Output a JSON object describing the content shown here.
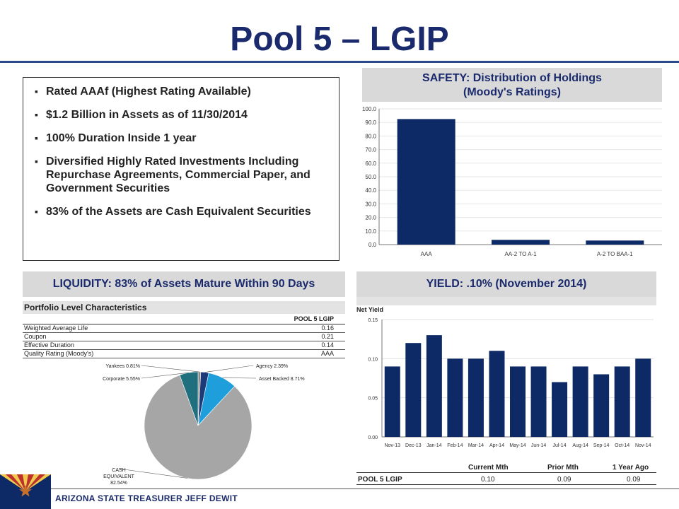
{
  "slide": {
    "title": "Pool 5 – LGIP",
    "footer": "ARIZONA STATE TREASURER JEFF DEWIT"
  },
  "bullets": [
    "Rated AAAf (Highest Rating Available)",
    "$1.2 Billion in Assets as of 11/30/2014",
    "100% Duration Inside 1 year",
    "Diversified Highly Rated Investments Including Repurchase Agreements, Commercial Paper, and Government Securities",
    "83% of the Assets are Cash Equivalent Securities"
  ],
  "sections": {
    "safety_line1": "SAFETY: Distribution of Holdings",
    "safety_line2": "(Moody's Ratings)",
    "liquidity": "LIQUIDITY: 83% of Assets Mature Within 90 Days",
    "yield": "YIELD: .10% (November 2014)"
  },
  "portfolio": {
    "title": "Portfolio Level Characteristics",
    "column": "POOL 5 LGIP",
    "rows": [
      {
        "label": "Weighted Average Life",
        "value": "0.16"
      },
      {
        "label": "Coupon",
        "value": "0.21"
      },
      {
        "label": "Effective Duration",
        "value": "0.14"
      },
      {
        "label": "Quality Rating (Moody's)",
        "value": "AAA"
      }
    ]
  },
  "yield_table": {
    "headers": [
      "Current Mth",
      "Prior Mth",
      "1 Year Ago"
    ],
    "row_label": "POOL 5 LGIP",
    "values": [
      "0.10",
      "0.09",
      "0.09"
    ]
  },
  "colors": {
    "navy": "#0d2a66",
    "title": "#1a2a6c",
    "pie_gray": "#a6a6a6",
    "pie_teal": "#1f6f7f",
    "pie_cyan": "#1e9fdc",
    "pie_navy": "#1c3a78"
  },
  "chart_data": [
    {
      "type": "bar",
      "categories": [
        "AAA",
        "AA-2 TO A-1",
        "A-2 TO BAA-1"
      ],
      "values": [
        92.5,
        3.5,
        3.0
      ],
      "ylim": [
        0,
        100
      ],
      "yticks": [
        "100.0",
        "90.0",
        "80.0",
        "70.0",
        "60.0",
        "50.0",
        "40.0",
        "30.0",
        "20.0",
        "10.0",
        "0.0"
      ]
    },
    {
      "type": "pie",
      "labels": [
        "Yankees 0.81%",
        "Agency 2.39%",
        "Asset Backed 8.71%",
        "CASH EQUIVALENT 82.54%",
        "Corporate 5.55%"
      ],
      "cash_label_line1": "CASH",
      "cash_label_line2": "EQUIVALENT",
      "cash_label_line3": "82.54%",
      "values": [
        0.81,
        2.39,
        8.71,
        82.54,
        5.55
      ]
    },
    {
      "type": "bar",
      "title": "Net Yield",
      "categories": [
        "Nov-13",
        "Dec-13",
        "Jan-14",
        "Feb-14",
        "Mar-14",
        "Apr-14",
        "May-14",
        "Jun-14",
        "Jul-14",
        "Aug-14",
        "Sep-14",
        "Oct-14",
        "Nov-14"
      ],
      "values": [
        0.09,
        0.12,
        0.13,
        0.1,
        0.1,
        0.11,
        0.09,
        0.09,
        0.07,
        0.09,
        0.08,
        0.09,
        0.1
      ],
      "ylim": [
        0,
        0.15
      ],
      "yticks": [
        "0.15",
        "0.10",
        "0.05",
        "0.00"
      ]
    }
  ]
}
